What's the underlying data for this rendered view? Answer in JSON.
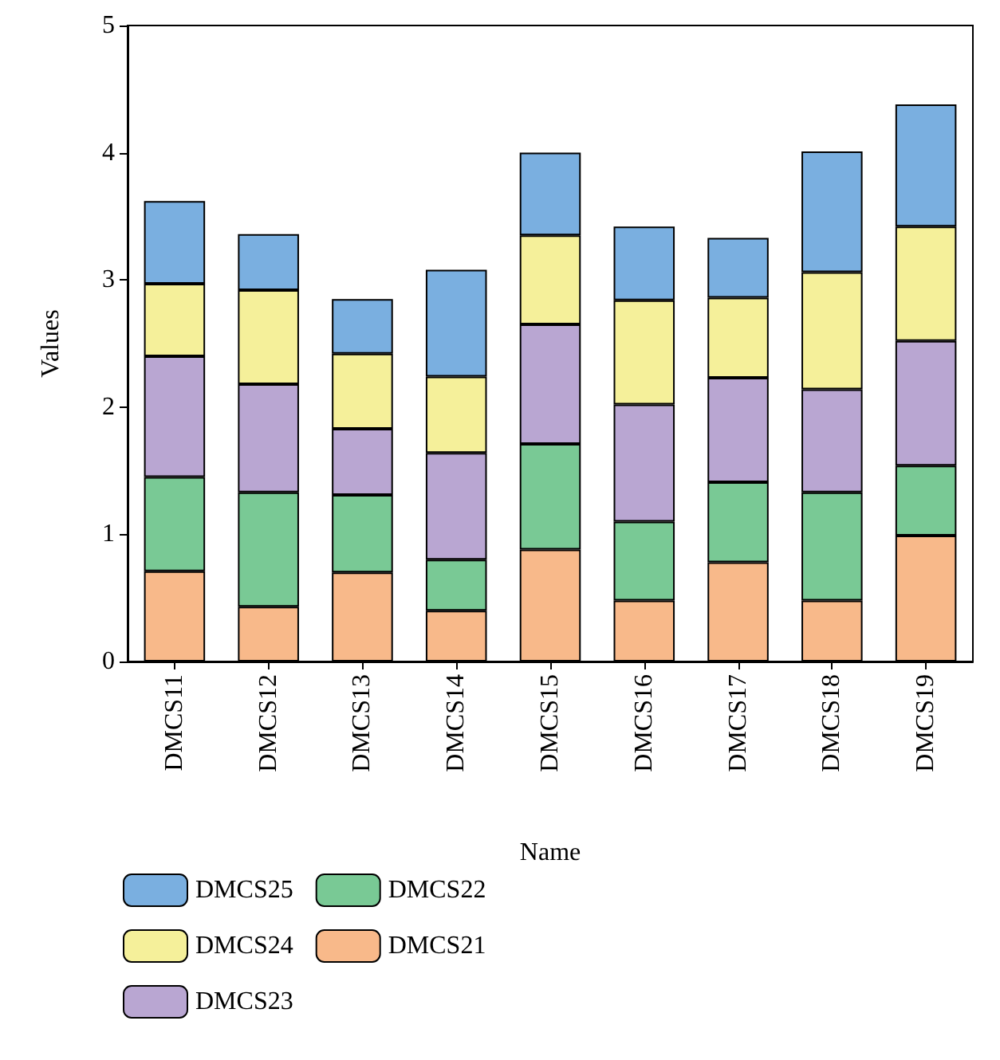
{
  "chart_data": {
    "type": "bar",
    "stacked": true,
    "xlabel": "Name",
    "ylabel": "Values",
    "categories": [
      "DMCS11",
      "DMCS12",
      "DMCS13",
      "DMCS14",
      "DMCS15",
      "DMCS16",
      "DMCS17",
      "DMCS18",
      "DMCS19"
    ],
    "series": [
      {
        "name": "DMCS21",
        "color": "#f8b98a",
        "values": [
          0.71,
          0.43,
          0.7,
          0.4,
          0.88,
          0.48,
          0.78,
          0.48,
          0.99
        ]
      },
      {
        "name": "DMCS22",
        "color": "#79c995",
        "values": [
          0.74,
          0.9,
          0.61,
          0.4,
          0.83,
          0.62,
          0.63,
          0.85,
          0.55
        ]
      },
      {
        "name": "DMCS23",
        "color": "#b9a6d2",
        "values": [
          0.95,
          0.85,
          0.52,
          0.84,
          0.94,
          0.92,
          0.82,
          0.81,
          0.98
        ]
      },
      {
        "name": "DMCS24",
        "color": "#f5f09a",
        "values": [
          0.57,
          0.74,
          0.59,
          0.6,
          0.7,
          0.82,
          0.63,
          0.92,
          0.9
        ]
      },
      {
        "name": "DMCS25",
        "color": "#7aafe0",
        "values": [
          0.65,
          0.44,
          0.43,
          0.84,
          0.65,
          0.58,
          0.47,
          0.95,
          0.96
        ]
      }
    ],
    "ylim": [
      0,
      5
    ],
    "yticks": [
      0,
      1,
      2,
      3,
      4,
      5
    ],
    "grid": false,
    "legend": "bottom"
  }
}
